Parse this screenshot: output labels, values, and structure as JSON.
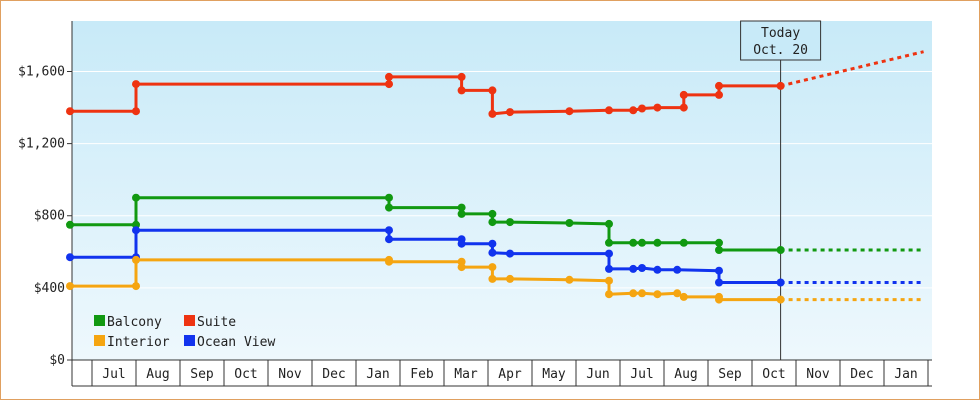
{
  "chart_data": {
    "type": "line",
    "y_tick_labels": [
      "$0",
      "$400",
      "$800",
      "$1,200",
      "$1,600"
    ],
    "y_ticks": [
      0,
      400,
      800,
      1200,
      1600
    ],
    "ylim": [
      0,
      1880
    ],
    "month_labels": [
      "Jul",
      "Aug",
      "Sep",
      "Oct",
      "Nov",
      "Dec",
      "Jan",
      "Feb",
      "Mar",
      "Apr",
      "May",
      "Jun",
      "Jul",
      "Aug",
      "Sep",
      "Oct",
      "Nov",
      "Dec",
      "Jan"
    ],
    "today": {
      "line1": "Today",
      "line2": "Oct. 20",
      "x": 16.15
    },
    "legend": [
      {
        "label": "Balcony",
        "color": "#119911"
      },
      {
        "label": "Suite",
        "color": "#ee3311"
      },
      {
        "label": "Interior",
        "color": "#f5a511"
      },
      {
        "label": "Ocean View",
        "color": "#1133ee"
      }
    ],
    "series": [
      {
        "name": "Suite",
        "color": "#ee3311",
        "points": [
          [
            0,
            1380
          ],
          [
            1.5,
            1380
          ],
          [
            1.5,
            1530
          ],
          [
            7.25,
            1530
          ],
          [
            7.25,
            1570
          ],
          [
            8.9,
            1570
          ],
          [
            8.9,
            1495
          ],
          [
            9.6,
            1495
          ],
          [
            9.6,
            1365
          ],
          [
            10.0,
            1375
          ],
          [
            11.35,
            1380
          ],
          [
            12.25,
            1385
          ],
          [
            12.8,
            1385
          ],
          [
            13.0,
            1395
          ],
          [
            13.35,
            1400
          ],
          [
            13.95,
            1400
          ],
          [
            13.95,
            1470
          ],
          [
            14.75,
            1470
          ],
          [
            14.75,
            1520
          ],
          [
            16.15,
            1520
          ]
        ],
        "markers": [
          [
            0,
            1380
          ],
          [
            1.5,
            1380
          ],
          [
            1.5,
            1530
          ],
          [
            7.25,
            1530
          ],
          [
            7.25,
            1570
          ],
          [
            8.9,
            1570
          ],
          [
            8.9,
            1495
          ],
          [
            9.6,
            1495
          ],
          [
            9.6,
            1365
          ],
          [
            10.0,
            1375
          ],
          [
            11.35,
            1380
          ],
          [
            12.25,
            1385
          ],
          [
            12.8,
            1385
          ],
          [
            13.0,
            1395
          ],
          [
            13.35,
            1400
          ],
          [
            13.95,
            1400
          ],
          [
            13.95,
            1470
          ],
          [
            14.75,
            1470
          ],
          [
            14.75,
            1520
          ],
          [
            16.15,
            1520
          ]
        ],
        "projection": [
          [
            16.15,
            1520
          ],
          [
            19.4,
            1710
          ]
        ]
      },
      {
        "name": "Balcony",
        "color": "#119911",
        "points": [
          [
            0,
            750
          ],
          [
            1.5,
            750
          ],
          [
            1.5,
            900
          ],
          [
            7.25,
            900
          ],
          [
            7.25,
            845
          ],
          [
            8.9,
            845
          ],
          [
            8.9,
            810
          ],
          [
            9.6,
            810
          ],
          [
            9.6,
            765
          ],
          [
            10.0,
            765
          ],
          [
            11.35,
            760
          ],
          [
            12.25,
            755
          ],
          [
            12.25,
            650
          ],
          [
            12.8,
            650
          ],
          [
            13.0,
            650
          ],
          [
            13.35,
            650
          ],
          [
            13.95,
            650
          ],
          [
            14.75,
            650
          ],
          [
            14.75,
            610
          ],
          [
            16.15,
            610
          ]
        ],
        "markers": [
          [
            0,
            750
          ],
          [
            1.5,
            750
          ],
          [
            1.5,
            900
          ],
          [
            7.25,
            900
          ],
          [
            7.25,
            845
          ],
          [
            8.9,
            845
          ],
          [
            8.9,
            810
          ],
          [
            9.6,
            810
          ],
          [
            9.6,
            765
          ],
          [
            10.0,
            765
          ],
          [
            11.35,
            760
          ],
          [
            12.25,
            755
          ],
          [
            12.25,
            650
          ],
          [
            12.8,
            650
          ],
          [
            13.0,
            650
          ],
          [
            13.35,
            650
          ],
          [
            13.95,
            650
          ],
          [
            14.75,
            650
          ],
          [
            14.75,
            610
          ],
          [
            16.15,
            610
          ]
        ],
        "projection": [
          [
            16.15,
            610
          ],
          [
            19.4,
            610
          ]
        ]
      },
      {
        "name": "Ocean View",
        "color": "#1133ee",
        "points": [
          [
            0,
            570
          ],
          [
            1.5,
            570
          ],
          [
            1.5,
            720
          ],
          [
            7.25,
            720
          ],
          [
            7.25,
            670
          ],
          [
            8.9,
            670
          ],
          [
            8.9,
            645
          ],
          [
            9.6,
            645
          ],
          [
            9.6,
            595
          ],
          [
            10.0,
            590
          ],
          [
            12.25,
            590
          ],
          [
            12.25,
            505
          ],
          [
            12.8,
            505
          ],
          [
            13.0,
            510
          ],
          [
            13.35,
            500
          ],
          [
            13.8,
            500
          ],
          [
            14.75,
            495
          ],
          [
            14.75,
            430
          ],
          [
            16.15,
            430
          ]
        ],
        "markers": [
          [
            0,
            570
          ],
          [
            1.5,
            570
          ],
          [
            1.5,
            720
          ],
          [
            7.25,
            720
          ],
          [
            7.25,
            670
          ],
          [
            8.9,
            670
          ],
          [
            8.9,
            645
          ],
          [
            9.6,
            645
          ],
          [
            9.6,
            595
          ],
          [
            10.0,
            590
          ],
          [
            12.25,
            590
          ],
          [
            12.25,
            505
          ],
          [
            12.8,
            505
          ],
          [
            13.0,
            510
          ],
          [
            13.35,
            500
          ],
          [
            13.8,
            500
          ],
          [
            14.75,
            495
          ],
          [
            14.75,
            430
          ],
          [
            16.15,
            430
          ]
        ],
        "projection": [
          [
            16.15,
            430
          ],
          [
            19.4,
            430
          ]
        ]
      },
      {
        "name": "Interior",
        "color": "#f5a511",
        "points": [
          [
            0,
            410
          ],
          [
            1.5,
            410
          ],
          [
            1.5,
            555
          ],
          [
            7.25,
            555
          ],
          [
            7.25,
            545
          ],
          [
            8.9,
            545
          ],
          [
            8.9,
            515
          ],
          [
            9.6,
            515
          ],
          [
            9.6,
            450
          ],
          [
            10.0,
            450
          ],
          [
            11.35,
            445
          ],
          [
            12.25,
            440
          ],
          [
            12.25,
            365
          ],
          [
            12.8,
            370
          ],
          [
            13.0,
            370
          ],
          [
            13.35,
            365
          ],
          [
            13.8,
            370
          ],
          [
            13.95,
            350
          ],
          [
            14.75,
            350
          ],
          [
            14.75,
            335
          ],
          [
            16.15,
            335
          ]
        ],
        "markers": [
          [
            0,
            410
          ],
          [
            1.5,
            410
          ],
          [
            1.5,
            555
          ],
          [
            7.25,
            555
          ],
          [
            7.25,
            545
          ],
          [
            8.9,
            545
          ],
          [
            8.9,
            515
          ],
          [
            9.6,
            515
          ],
          [
            9.6,
            450
          ],
          [
            10.0,
            450
          ],
          [
            11.35,
            445
          ],
          [
            12.25,
            440
          ],
          [
            12.25,
            365
          ],
          [
            12.8,
            370
          ],
          [
            13.0,
            370
          ],
          [
            13.35,
            365
          ],
          [
            13.8,
            370
          ],
          [
            13.95,
            350
          ],
          [
            14.75,
            350
          ],
          [
            14.75,
            335
          ],
          [
            16.15,
            335
          ]
        ],
        "projection": [
          [
            16.15,
            335
          ],
          [
            19.4,
            335
          ]
        ]
      }
    ]
  }
}
